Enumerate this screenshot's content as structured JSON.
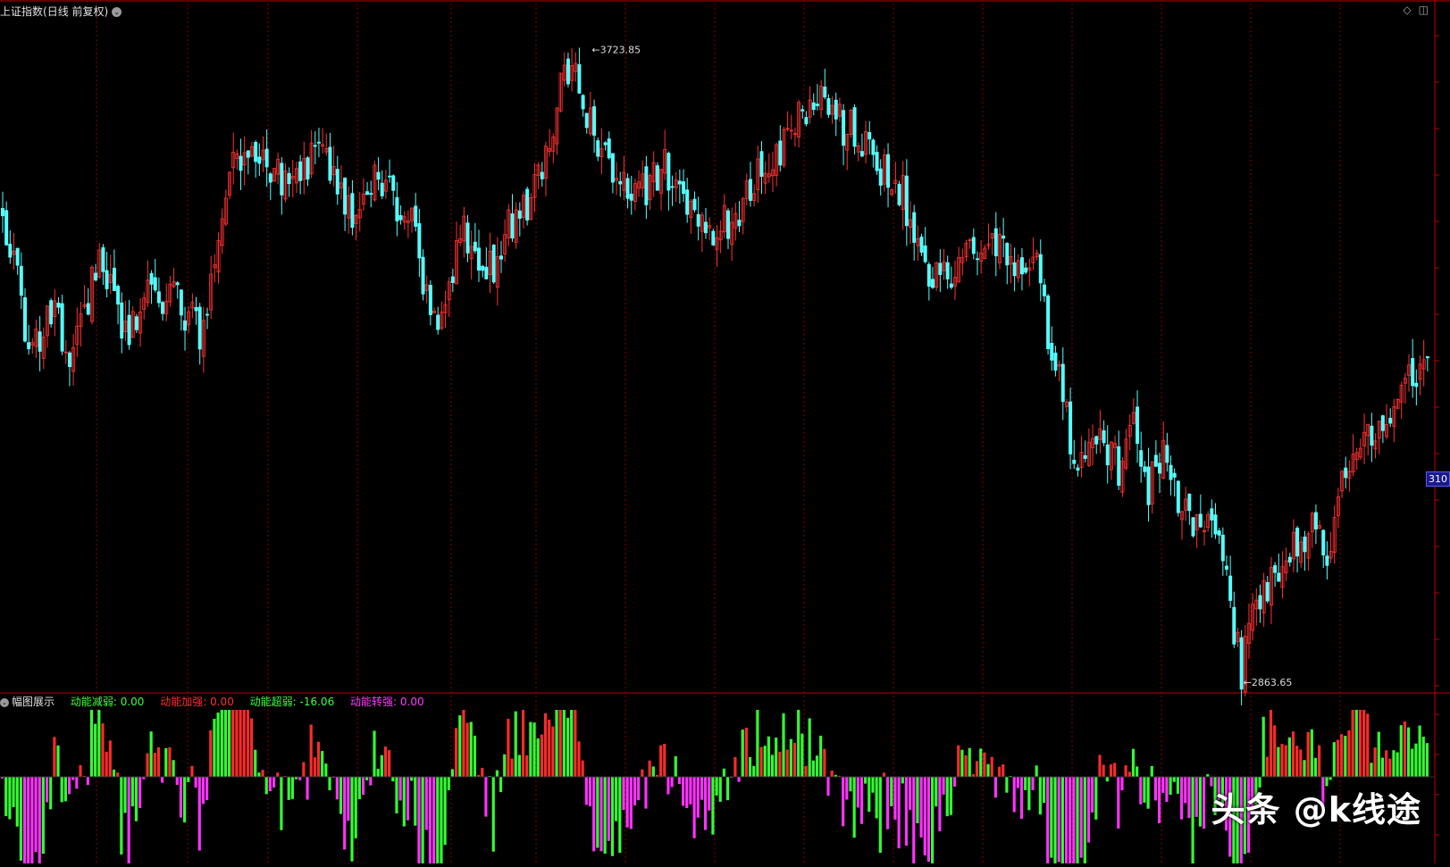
{
  "title": {
    "name": "上证指数",
    "mode": "(日线 前复权)"
  },
  "indicator": {
    "name": "幅图展示",
    "legend": [
      {
        "label": "动能减弱: 0.00",
        "color": "#3cff3c"
      },
      {
        "label": "动能加强: 0.00",
        "color": "#ff3030"
      },
      {
        "label": "动能超弱: -16.06",
        "color": "#3cff3c"
      },
      {
        "label": "动能转强: 0.00",
        "color": "#ff3cff"
      }
    ]
  },
  "price_tag": "310",
  "watermark": "头条 @k线途",
  "colors": {
    "up": "#ff3232",
    "down": "#54ffff",
    "grid": "#8b0000",
    "bg": "#000000"
  },
  "chart_data": [
    {
      "type": "candlestick",
      "name": "上证指数",
      "annotations": [
        {
          "label": "3723.85",
          "kind": "high"
        },
        {
          "label": "2863.65",
          "kind": "low"
        }
      ],
      "ylim": [
        2850,
        3760
      ],
      "anchors": [
        [
          0,
          3470
        ],
        [
          4,
          3400
        ],
        [
          7,
          3300
        ],
        [
          10,
          3330
        ],
        [
          14,
          3350
        ],
        [
          18,
          3310
        ],
        [
          22,
          3370
        ],
        [
          26,
          3420
        ],
        [
          30,
          3380
        ],
        [
          34,
          3320
        ],
        [
          38,
          3400
        ],
        [
          42,
          3360
        ],
        [
          46,
          3390
        ],
        [
          50,
          3350
        ],
        [
          54,
          3330
        ],
        [
          58,
          3440
        ],
        [
          62,
          3560
        ],
        [
          66,
          3580
        ],
        [
          70,
          3570
        ],
        [
          74,
          3540
        ],
        [
          78,
          3520
        ],
        [
          82,
          3560
        ],
        [
          86,
          3570
        ],
        [
          90,
          3520
        ],
        [
          94,
          3500
        ],
        [
          98,
          3530
        ],
        [
          102,
          3540
        ],
        [
          106,
          3500
        ],
        [
          110,
          3490
        ],
        [
          113,
          3380
        ],
        [
          116,
          3350
        ],
        [
          120,
          3400
        ],
        [
          124,
          3470
        ],
        [
          128,
          3430
        ],
        [
          132,
          3420
        ],
        [
          136,
          3470
        ],
        [
          140,
          3500
        ],
        [
          144,
          3540
        ],
        [
          148,
          3620
        ],
        [
          151,
          3700
        ],
        [
          154,
          3680
        ],
        [
          158,
          3620
        ],
        [
          162,
          3570
        ],
        [
          166,
          3550
        ],
        [
          170,
          3520
        ],
        [
          174,
          3530
        ],
        [
          178,
          3560
        ],
        [
          182,
          3510
        ],
        [
          186,
          3480
        ],
        [
          190,
          3450
        ],
        [
          194,
          3480
        ],
        [
          198,
          3500
        ],
        [
          202,
          3540
        ],
        [
          206,
          3560
        ],
        [
          210,
          3580
        ],
        [
          214,
          3620
        ],
        [
          218,
          3660
        ],
        [
          222,
          3640
        ],
        [
          226,
          3610
        ],
        [
          230,
          3600
        ],
        [
          234,
          3560
        ],
        [
          238,
          3540
        ],
        [
          242,
          3520
        ],
        [
          246,
          3440
        ],
        [
          250,
          3410
        ],
        [
          254,
          3400
        ],
        [
          258,
          3420
        ],
        [
          262,
          3440
        ],
        [
          266,
          3450
        ],
        [
          270,
          3430
        ],
        [
          274,
          3420
        ],
        [
          278,
          3440
        ],
        [
          282,
          3300
        ],
        [
          286,
          3220
        ],
        [
          289,
          3130
        ],
        [
          292,
          3170
        ],
        [
          296,
          3180
        ],
        [
          300,
          3150
        ],
        [
          304,
          3200
        ],
        [
          308,
          3120
        ],
        [
          312,
          3180
        ],
        [
          316,
          3090
        ],
        [
          320,
          3080
        ],
        [
          324,
          3060
        ],
        [
          328,
          3020
        ],
        [
          331,
          2930
        ],
        [
          333,
          2870
        ],
        [
          336,
          2940
        ],
        [
          340,
          2990
        ],
        [
          344,
          3020
        ],
        [
          348,
          3040
        ],
        [
          352,
          3060
        ],
        [
          356,
          3040
        ],
        [
          360,
          3120
        ],
        [
          364,
          3180
        ],
        [
          368,
          3200
        ],
        [
          372,
          3220
        ],
        [
          376,
          3250
        ],
        [
          380,
          3280
        ],
        [
          383,
          3300
        ]
      ],
      "n_candles": 384,
      "seed": 20221
    },
    {
      "type": "bar",
      "name": "幅图展示",
      "series_names": [
        "动能减弱",
        "动能加强",
        "动能超弱",
        "动能转强"
      ],
      "ylim": [
        -18,
        16
      ],
      "pattern_seed": 777
    }
  ]
}
